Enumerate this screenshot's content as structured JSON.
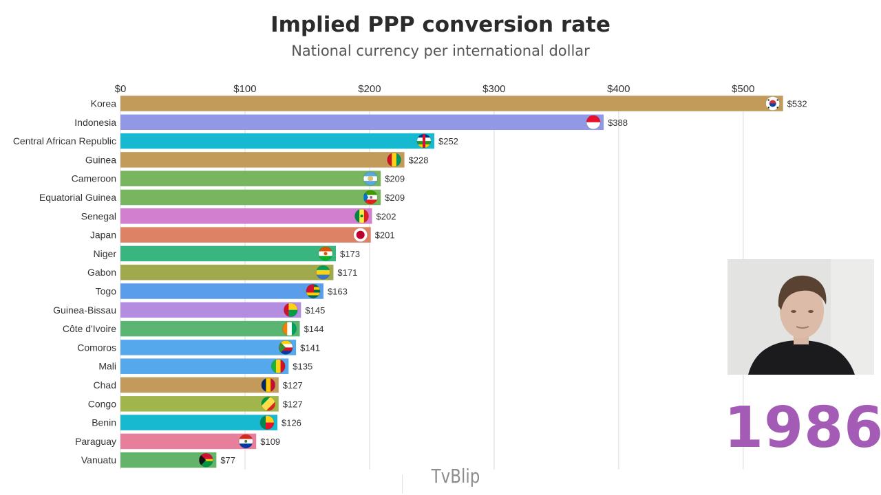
{
  "header": {
    "title": "Implied PPP conversion rate",
    "subtitle": "National currency per international dollar"
  },
  "year": "1986",
  "watermark": "TvBlip",
  "chart_data": {
    "type": "bar",
    "orientation": "horizontal",
    "title": "Implied PPP conversion rate",
    "subtitle": "National currency per international dollar",
    "xlim": [
      0,
      560
    ],
    "ticks": [
      0,
      100,
      200,
      300,
      400,
      500
    ],
    "tick_labels": [
      "$0",
      "$100",
      "$200",
      "$300",
      "$400",
      "$500"
    ],
    "grid": true,
    "categories": [
      "Korea",
      "Indonesia",
      "Central African Republic",
      "Guinea",
      "Cameroon",
      "Equatorial Guinea",
      "Senegal",
      "Japan",
      "Niger",
      "Gabon",
      "Togo",
      "Guinea-Bissau",
      "Côte d'Ivoire",
      "Comoros",
      "Mali",
      "Chad",
      "Congo",
      "Benin",
      "Paraguay",
      "Vanuatu"
    ],
    "values": [
      532,
      388,
      252,
      228,
      209,
      209,
      202,
      201,
      173,
      171,
      163,
      145,
      144,
      141,
      135,
      127,
      127,
      126,
      109,
      77
    ],
    "value_labels": [
      "$532",
      "$388",
      "$252",
      "$228",
      "$209",
      "$209",
      "$202",
      "$201",
      "$173",
      "$171",
      "$163",
      "$145",
      "$144",
      "$141",
      "$135",
      "$127",
      "$127",
      "$126",
      "$109",
      "$77"
    ],
    "colors": [
      "#c29b5b",
      "#9198e5",
      "#16b9cf",
      "#c29b5b",
      "#77b55f",
      "#77b55f",
      "#d37fd0",
      "#dd8264",
      "#39b57f",
      "#a0a94c",
      "#5a9de8",
      "#b48ce0",
      "#5ab472",
      "#56a8ec",
      "#56a8ec",
      "#c29b5b",
      "#a0b64b",
      "#16b9cf",
      "#e77e9c",
      "#63b36b"
    ],
    "flags": [
      "south-korea-flag",
      "indonesia-flag",
      "central-african-republic-flag",
      "guinea-flag",
      "cameroon-flag",
      "equatorial-guinea-flag",
      "senegal-flag",
      "japan-flag",
      "niger-flag",
      "gabon-flag",
      "togo-flag",
      "guinea-bissau-flag",
      "cote-divoire-flag",
      "comoros-flag",
      "mali-flag",
      "chad-flag",
      "congo-flag",
      "benin-flag",
      "paraguay-flag",
      "vanuatu-flag"
    ]
  }
}
